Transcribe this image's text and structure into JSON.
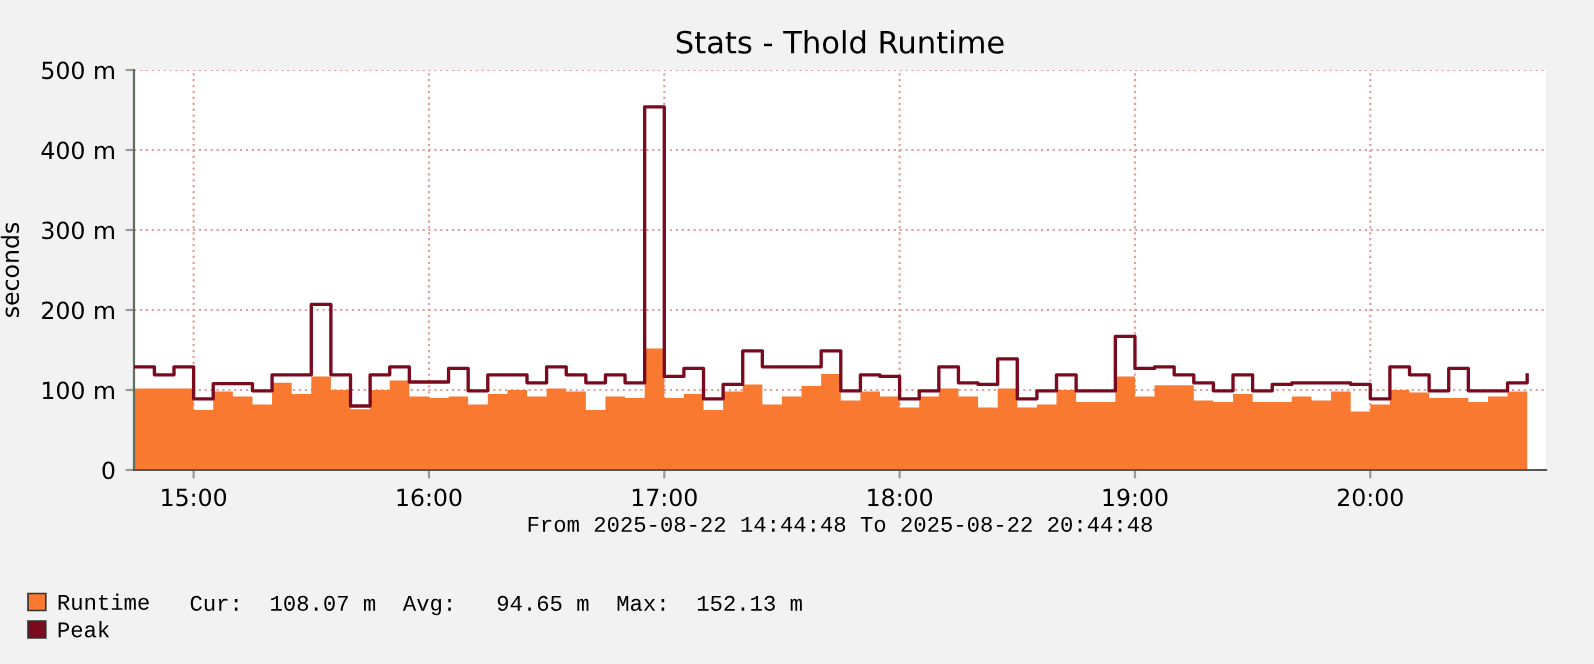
{
  "chart_data": {
    "type": "step",
    "title": "Stats - Thold Runtime",
    "ylabel": "seconds",
    "x": [
      "2025-08-22T14:45",
      "2025-08-22T14:50",
      "2025-08-22T14:55",
      "2025-08-22T15:00",
      "2025-08-22T15:05",
      "2025-08-22T15:10",
      "2025-08-22T15:15",
      "2025-08-22T15:20",
      "2025-08-22T15:25",
      "2025-08-22T15:30",
      "2025-08-22T15:35",
      "2025-08-22T15:40",
      "2025-08-22T15:45",
      "2025-08-22T15:50",
      "2025-08-22T15:55",
      "2025-08-22T16:00",
      "2025-08-22T16:05",
      "2025-08-22T16:10",
      "2025-08-22T16:15",
      "2025-08-22T16:20",
      "2025-08-22T16:25",
      "2025-08-22T16:30",
      "2025-08-22T16:35",
      "2025-08-22T16:40",
      "2025-08-22T16:45",
      "2025-08-22T16:50",
      "2025-08-22T16:55",
      "2025-08-22T17:00",
      "2025-08-22T17:05",
      "2025-08-22T17:10",
      "2025-08-22T17:15",
      "2025-08-22T17:20",
      "2025-08-22T17:25",
      "2025-08-22T17:30",
      "2025-08-22T17:35",
      "2025-08-22T17:40",
      "2025-08-22T17:45",
      "2025-08-22T17:50",
      "2025-08-22T17:55",
      "2025-08-22T18:00",
      "2025-08-22T18:05",
      "2025-08-22T18:10",
      "2025-08-22T18:15",
      "2025-08-22T18:20",
      "2025-08-22T18:25",
      "2025-08-22T18:30",
      "2025-08-22T18:35",
      "2025-08-22T18:40",
      "2025-08-22T18:45",
      "2025-08-22T18:50",
      "2025-08-22T18:55",
      "2025-08-22T19:00",
      "2025-08-22T19:05",
      "2025-08-22T19:10",
      "2025-08-22T19:15",
      "2025-08-22T19:20",
      "2025-08-22T19:25",
      "2025-08-22T19:30",
      "2025-08-22T19:35",
      "2025-08-22T19:40",
      "2025-08-22T19:45",
      "2025-08-22T19:50",
      "2025-08-22T19:55",
      "2025-08-22T20:00",
      "2025-08-22T20:05",
      "2025-08-22T20:10",
      "2025-08-22T20:15",
      "2025-08-22T20:20",
      "2025-08-22T20:25",
      "2025-08-22T20:30",
      "2025-08-22T20:35",
      "2025-08-22T20:40"
    ],
    "series": [
      {
        "name": "Runtime",
        "type": "area",
        "color": "#f8792f",
        "values": [
          102,
          102,
          102,
          75,
          98,
          92,
          82,
          109,
          95,
          117,
          100,
          76,
          100,
          112,
          92,
          90,
          92,
          82,
          95,
          100,
          92,
          102,
          98,
          75,
          92,
          90,
          152,
          90,
          95,
          75,
          98,
          107,
          82,
          92,
          105,
          120,
          87,
          98,
          92,
          78,
          92,
          102,
          92,
          78,
          102,
          78,
          82,
          100,
          85,
          85,
          117,
          92,
          106,
          106,
          87,
          85,
          95,
          85,
          85,
          92,
          87,
          98,
          73,
          82,
          100,
          97,
          90,
          90,
          85,
          92,
          98,
          108
        ]
      },
      {
        "name": "Peak",
        "color": "#7a0a1e",
        "values": [
          129,
          119,
          129,
          89,
          108,
          108,
          99,
          119,
          119,
          207,
          119,
          80,
          119,
          129,
          110,
          110,
          127,
          99,
          119,
          119,
          109,
          129,
          119,
          109,
          119,
          109,
          454,
          117,
          127,
          89,
          107,
          149,
          129,
          129,
          129,
          149,
          99,
          119,
          117,
          89,
          99,
          129,
          109,
          107,
          139,
          89,
          99,
          119,
          99,
          99,
          167,
          127,
          129,
          119,
          109,
          99,
          119,
          99,
          107,
          109,
          109,
          109,
          107,
          89,
          129,
          119,
          99,
          127,
          99,
          99,
          109,
          119
        ]
      }
    ],
    "xlim": [
      "2025-08-22T14:44:48",
      "2025-08-22T20:44:48"
    ],
    "xticks": [
      {
        "value": "2025-08-22T15:00",
        "label": "15:00"
      },
      {
        "value": "2025-08-22T16:00",
        "label": "16:00"
      },
      {
        "value": "2025-08-22T17:00",
        "label": "17:00"
      },
      {
        "value": "2025-08-22T18:00",
        "label": "18:00"
      },
      {
        "value": "2025-08-22T19:00",
        "label": "19:00"
      },
      {
        "value": "2025-08-22T20:00",
        "label": "20:00"
      }
    ],
    "ylim": [
      0,
      500
    ],
    "yticks": [
      0,
      {
        "value": 100,
        "label": "100 m"
      },
      {
        "value": 200,
        "label": "200 m"
      },
      {
        "value": 300,
        "label": "300 m"
      },
      {
        "value": 400,
        "label": "400 m"
      },
      {
        "value": 500,
        "label": "500 m"
      }
    ],
    "grid": true,
    "legend": "bottom left",
    "annotations": [
      "From 2025-08-22 14:44:48 To 2025-08-22 20:44:48",
      "Cur:  108.07 m  Avg:   94.65 m  Max:  152.13 m"
    ]
  }
}
